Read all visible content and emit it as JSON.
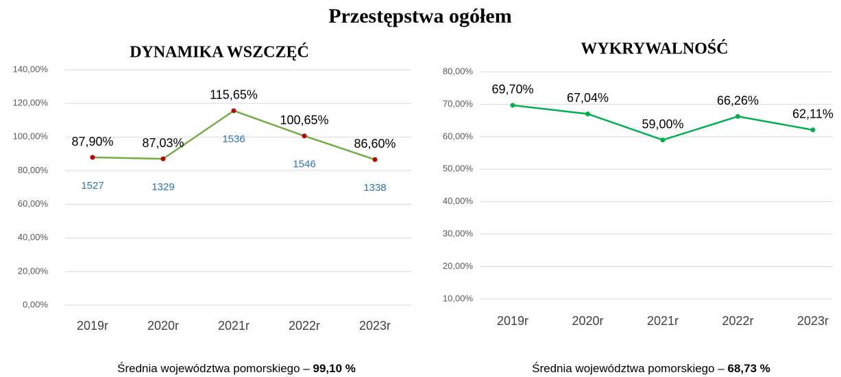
{
  "title": "Przestępstwa ogółem",
  "chart_data": [
    {
      "type": "line",
      "title": "DYNAMIKA WSZCZĘĆ",
      "categories": [
        "2019r",
        "2020r",
        "2021r",
        "2022r",
        "2023r"
      ],
      "values": [
        87.9,
        87.03,
        115.65,
        100.65,
        86.6
      ],
      "value_labels": [
        "87,90%",
        "87,03%",
        "115,65%",
        "100,65%",
        "86,60%"
      ],
      "annotations": [
        "1527",
        "1329",
        "1536",
        "1546",
        "1338"
      ],
      "color": "#70ad47",
      "marker_color": "#c00000",
      "annotation_color": "#2e75b6",
      "ylim": [
        0,
        140
      ],
      "yticks": [
        {
          "value": 0,
          "label": "0,00%"
        },
        {
          "value": 20,
          "label": "20,00%"
        },
        {
          "value": 40,
          "label": "40,00%"
        },
        {
          "value": 60,
          "label": "60,00%"
        },
        {
          "value": 80,
          "label": "80,00%"
        },
        {
          "value": 100,
          "label": "100,00%"
        },
        {
          "value": 120,
          "label": "120,00%"
        },
        {
          "value": 140,
          "label": "140,00%"
        }
      ],
      "grid": true,
      "note": {
        "text": "Średnia województwa pomorskiego – ",
        "value": "99,10 %"
      }
    },
    {
      "type": "line",
      "title": "WYKRYWALNOŚĆ",
      "categories": [
        "2019r",
        "2020r",
        "2021r",
        "2022r",
        "2023r"
      ],
      "values": [
        69.7,
        67.04,
        59.0,
        66.26,
        62.11
      ],
      "value_labels": [
        "69,70%",
        "67,04%",
        "59,00%",
        "66,26%",
        "62,11%"
      ],
      "color": "#00b050",
      "marker_color": "#00b050",
      "ylim": [
        10,
        80
      ],
      "yticks": [
        {
          "value": 10,
          "label": "10,00%"
        },
        {
          "value": 20,
          "label": "20,00%"
        },
        {
          "value": 30,
          "label": "30,00%"
        },
        {
          "value": 40,
          "label": "40,00%"
        },
        {
          "value": 50,
          "label": "50,00%"
        },
        {
          "value": 60,
          "label": "60,00%"
        },
        {
          "value": 70,
          "label": "70,00%"
        },
        {
          "value": 80,
          "label": "80,00%"
        }
      ],
      "grid": true,
      "note": {
        "text": "Średnia województwa pomorskiego – ",
        "value": "68,73 %"
      }
    }
  ]
}
